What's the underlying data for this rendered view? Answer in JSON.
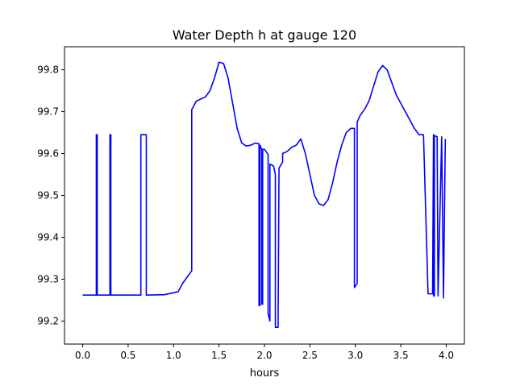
{
  "chart_data": {
    "type": "line",
    "title": "Water Depth h at gauge 120",
    "xlabel": "hours",
    "ylabel": "",
    "xlim": [
      -0.2,
      4.2
    ],
    "ylim": [
      99.145,
      99.855
    ],
    "xticks": [
      0.0,
      0.5,
      1.0,
      1.5,
      2.0,
      2.5,
      3.0,
      3.5,
      4.0
    ],
    "xtick_labels": [
      "0.0",
      "0.5",
      "1.0",
      "1.5",
      "2.0",
      "2.5",
      "3.0",
      "3.5",
      "4.0"
    ],
    "yticks": [
      99.2,
      99.3,
      99.4,
      99.5,
      99.6,
      99.7,
      99.8
    ],
    "ytick_labels": [
      "99.2",
      "99.3",
      "99.4",
      "99.5",
      "99.6",
      "99.7",
      "99.8"
    ],
    "grid": false,
    "legend": "none",
    "series": [
      {
        "color": "#0000ff",
        "x": [
          0.0,
          0.15,
          0.15,
          0.16,
          0.16,
          0.3,
          0.3,
          0.31,
          0.31,
          0.64,
          0.64,
          0.7,
          0.7,
          0.9,
          1.05,
          1.1,
          1.15,
          1.2,
          1.2,
          1.25,
          1.3,
          1.35,
          1.4,
          1.45,
          1.5,
          1.55,
          1.6,
          1.65,
          1.7,
          1.75,
          1.8,
          1.85,
          1.9,
          1.94,
          1.94,
          1.95,
          1.95,
          1.97,
          1.97,
          1.98,
          1.98,
          2.0,
          2.04,
          2.04,
          2.06,
          2.06,
          2.1,
          2.12,
          2.12,
          2.15,
          2.16,
          2.16,
          2.2,
          2.2,
          2.25,
          2.3,
          2.35,
          2.4,
          2.45,
          2.5,
          2.55,
          2.6,
          2.65,
          2.7,
          2.75,
          2.8,
          2.85,
          2.9,
          2.95,
          2.99,
          2.99,
          3.02,
          3.02,
          3.05,
          3.1,
          3.15,
          3.2,
          3.25,
          3.3,
          3.35,
          3.4,
          3.45,
          3.5,
          3.55,
          3.6,
          3.65,
          3.7,
          3.75,
          3.8,
          3.85,
          3.86,
          3.86,
          3.87,
          3.87,
          3.9,
          3.91,
          3.91,
          3.95,
          3.95,
          3.97,
          3.97,
          3.99,
          3.99
        ],
        "y": [
          99.262,
          99.262,
          99.645,
          99.645,
          99.262,
          99.262,
          99.645,
          99.645,
          99.262,
          99.262,
          99.645,
          99.645,
          99.262,
          99.263,
          99.27,
          99.29,
          99.305,
          99.32,
          99.705,
          99.725,
          99.73,
          99.735,
          99.75,
          99.78,
          99.818,
          99.815,
          99.78,
          99.72,
          99.66,
          99.625,
          99.618,
          99.62,
          99.625,
          99.623,
          99.237,
          99.237,
          99.62,
          99.61,
          99.24,
          99.24,
          99.61,
          99.61,
          99.598,
          99.218,
          99.2,
          99.575,
          99.57,
          99.55,
          99.185,
          99.185,
          99.563,
          99.565,
          99.58,
          99.6,
          99.605,
          99.615,
          99.62,
          99.635,
          99.6,
          99.55,
          99.5,
          99.48,
          99.476,
          99.49,
          99.53,
          99.58,
          99.62,
          99.65,
          99.66,
          99.66,
          99.28,
          99.29,
          99.675,
          99.69,
          99.705,
          99.725,
          99.76,
          99.795,
          99.81,
          99.8,
          99.77,
          99.74,
          99.72,
          99.7,
          99.68,
          99.66,
          99.645,
          99.645,
          99.265,
          99.265,
          99.645,
          99.26,
          99.26,
          99.643,
          99.64,
          99.26,
          99.26,
          99.64,
          99.64,
          99.255,
          99.255,
          99.635,
          99.635
        ]
      }
    ]
  }
}
